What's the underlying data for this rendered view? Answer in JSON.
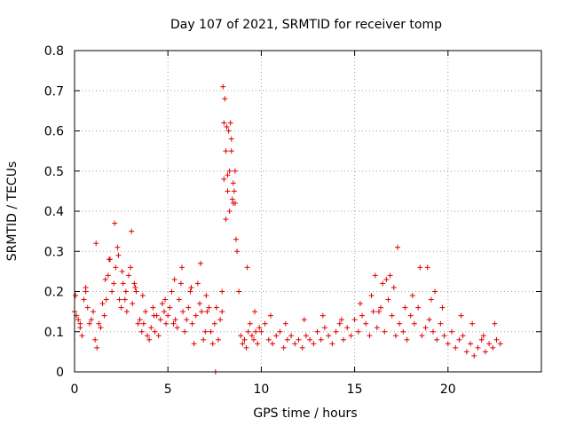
{
  "chart_data": {
    "type": "scatter",
    "title": "Day 107 of 2021, SRMTID for receiver tomp",
    "xlabel": "GPS time / hours",
    "ylabel": "SRMTID / TECUs",
    "xlim": [
      0,
      25
    ],
    "ylim": [
      0,
      0.8
    ],
    "x_ticks": [
      0,
      5,
      10,
      15,
      20
    ],
    "y_ticks": [
      0,
      0.1,
      0.2,
      0.3,
      0.4,
      0.5,
      0.6,
      0.7,
      0.8
    ],
    "x_tick_labels": [
      "0",
      "5",
      "10",
      "15",
      "20"
    ],
    "y_tick_labels": [
      "0",
      "0.1",
      "0.2",
      "0.3",
      "0.4",
      "0.5",
      "0.6",
      "0.7",
      "0.8"
    ],
    "grid": true,
    "marker": "+",
    "color": "#e00000",
    "series": [
      {
        "name": "SRMTID",
        "x": [
          0.0,
          0.1,
          0.2,
          0.3,
          0.4,
          0.5,
          0.6,
          0.7,
          0.8,
          0.9,
          1.0,
          1.1,
          1.2,
          1.3,
          1.4,
          1.5,
          1.6,
          1.7,
          1.8,
          1.9,
          2.0,
          2.1,
          2.2,
          2.3,
          2.4,
          2.5,
          2.6,
          2.7,
          2.8,
          2.9,
          3.0,
          3.1,
          3.2,
          3.3,
          3.4,
          3.5,
          3.6,
          3.7,
          3.8,
          3.9,
          4.0,
          4.1,
          4.2,
          4.3,
          4.4,
          4.5,
          4.6,
          4.7,
          4.8,
          4.9,
          5.0,
          5.1,
          5.2,
          5.3,
          5.4,
          5.5,
          5.6,
          5.7,
          5.8,
          5.9,
          6.0,
          6.1,
          6.2,
          6.3,
          6.4,
          6.5,
          6.6,
          6.7,
          6.8,
          6.9,
          7.0,
          7.1,
          7.2,
          7.3,
          7.4,
          7.5,
          7.6,
          7.7,
          7.8,
          7.9,
          8.0,
          8.1,
          8.2,
          8.3,
          8.4,
          8.5,
          8.6,
          8.7,
          8.8,
          8.9,
          9.0,
          9.1,
          9.2,
          9.3,
          9.4,
          9.5,
          9.6,
          9.7,
          9.8,
          9.9,
          10.0,
          10.2,
          10.4,
          10.6,
          10.8,
          11.0,
          11.2,
          11.4,
          11.6,
          11.8,
          12.0,
          12.2,
          12.4,
          12.6,
          12.8,
          13.0,
          13.2,
          13.4,
          13.6,
          13.8,
          14.0,
          14.2,
          14.4,
          14.6,
          14.8,
          15.0,
          15.2,
          15.4,
          15.6,
          15.8,
          16.0,
          16.2,
          16.4,
          16.6,
          16.8,
          17.0,
          17.2,
          17.4,
          17.6,
          17.8,
          18.0,
          18.2,
          18.4,
          18.6,
          18.8,
          19.0,
          19.2,
          19.4,
          19.6,
          19.8,
          20.0,
          20.2,
          20.4,
          20.6,
          20.8,
          21.0,
          21.2,
          21.4,
          21.6,
          21.8,
          22.0,
          22.2,
          22.4,
          22.6,
          22.8,
          0.05,
          0.3,
          0.6,
          1.15,
          1.65,
          1.85,
          2.15,
          2.35,
          2.55,
          2.75,
          3.05,
          3.25,
          3.65,
          4.25,
          4.85,
          5.35,
          5.75,
          6.25,
          6.75,
          7.05,
          7.55,
          7.95,
          8.05,
          8.15,
          8.25,
          8.35,
          8.45,
          8.55,
          8.65,
          7.9,
          8.0,
          8.2,
          8.4,
          8.6,
          8.1,
          8.3,
          8.5,
          9.25,
          9.65,
          10.5,
          11.3,
          12.3,
          13.3,
          14.3,
          15.3,
          15.9,
          16.3,
          16.5,
          16.9,
          17.1,
          17.3,
          18.5,
          18.9,
          19.3,
          19.7,
          20.7,
          21.3,
          21.9,
          22.5,
          16.1,
          16.7,
          17.7,
          18.1,
          19.1
        ],
        "y": [
          0.15,
          0.14,
          0.13,
          0.12,
          0.09,
          0.18,
          0.2,
          0.16,
          0.12,
          0.13,
          0.15,
          0.08,
          0.06,
          0.12,
          0.11,
          0.17,
          0.14,
          0.18,
          0.24,
          0.28,
          0.2,
          0.22,
          0.26,
          0.31,
          0.18,
          0.16,
          0.22,
          0.18,
          0.15,
          0.24,
          0.26,
          0.17,
          0.22,
          0.2,
          0.12,
          0.13,
          0.1,
          0.12,
          0.15,
          0.09,
          0.08,
          0.11,
          0.16,
          0.1,
          0.14,
          0.09,
          0.13,
          0.17,
          0.15,
          0.12,
          0.14,
          0.16,
          0.2,
          0.12,
          0.13,
          0.11,
          0.18,
          0.22,
          0.15,
          0.1,
          0.13,
          0.16,
          0.2,
          0.12,
          0.07,
          0.14,
          0.22,
          0.17,
          0.15,
          0.08,
          0.1,
          0.15,
          0.16,
          0.1,
          0.07,
          0.12,
          0.16,
          0.08,
          0.13,
          0.2,
          0.48,
          0.55,
          0.45,
          0.5,
          0.58,
          0.47,
          0.42,
          0.3,
          0.2,
          0.09,
          0.07,
          0.08,
          0.06,
          0.1,
          0.12,
          0.09,
          0.08,
          0.1,
          0.07,
          0.11,
          0.1,
          0.12,
          0.08,
          0.07,
          0.09,
          0.1,
          0.06,
          0.08,
          0.09,
          0.07,
          0.08,
          0.06,
          0.09,
          0.08,
          0.07,
          0.1,
          0.08,
          0.11,
          0.09,
          0.07,
          0.1,
          0.12,
          0.08,
          0.11,
          0.09,
          0.13,
          0.1,
          0.14,
          0.12,
          0.09,
          0.15,
          0.11,
          0.16,
          0.1,
          0.18,
          0.14,
          0.09,
          0.12,
          0.1,
          0.08,
          0.14,
          0.12,
          0.16,
          0.09,
          0.11,
          0.13,
          0.1,
          0.08,
          0.12,
          0.09,
          0.07,
          0.1,
          0.06,
          0.08,
          0.09,
          0.05,
          0.07,
          0.04,
          0.06,
          0.08,
          0.05,
          0.07,
          0.06,
          0.08,
          0.07,
          0.19,
          0.11,
          0.21,
          0.32,
          0.23,
          0.28,
          0.37,
          0.29,
          0.25,
          0.2,
          0.35,
          0.21,
          0.19,
          0.14,
          0.18,
          0.23,
          0.26,
          0.21,
          0.27,
          0.19,
          0.0,
          0.71,
          0.68,
          0.61,
          0.6,
          0.62,
          0.43,
          0.45,
          0.33,
          0.15,
          0.62,
          0.49,
          0.55,
          0.5,
          0.38,
          0.4,
          0.42,
          0.26,
          0.15,
          0.14,
          0.12,
          0.13,
          0.14,
          0.13,
          0.17,
          0.19,
          0.15,
          0.22,
          0.24,
          0.21,
          0.31,
          0.26,
          0.26,
          0.2,
          0.16,
          0.14,
          0.12,
          0.09,
          0.12,
          0.24,
          0.23,
          0.16,
          0.19,
          0.18
        ]
      }
    ]
  }
}
